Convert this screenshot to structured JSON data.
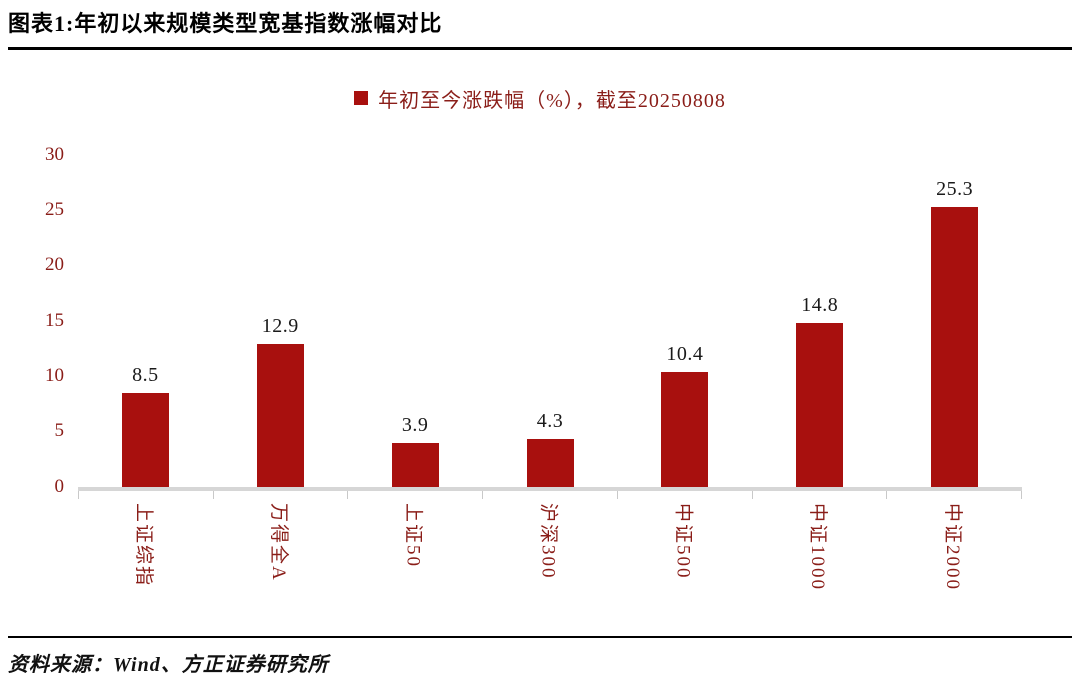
{
  "title": "图表1:年初以来规模类型宽基指数涨幅对比",
  "legend": {
    "label": "年初至今涨跌幅（%），截至20250808"
  },
  "source": "资料来源：Wind、方正证券研究所",
  "colors": {
    "bar": "#a8100e",
    "axis_text": "#8a1d18",
    "value_text": "#1a1a1a",
    "title_text": "#000000",
    "axis_line": "#d6d6d6"
  },
  "chart_data": {
    "type": "bar",
    "title": "图表1:年初以来规模类型宽基指数涨幅对比",
    "series_name": "年初至今涨跌幅（%），截至20250808",
    "categories": [
      "上证综指",
      "万得全A",
      "上证50",
      "沪深300",
      "中证500",
      "中证1000",
      "中证2000"
    ],
    "values": [
      8.5,
      12.9,
      3.9,
      4.3,
      10.4,
      14.8,
      25.3
    ],
    "xlabel": "",
    "ylabel": "",
    "ylim": [
      0,
      30
    ],
    "yticks": [
      0,
      5,
      10,
      15,
      20,
      25,
      30
    ],
    "grid": false,
    "legend_position": "top-center"
  }
}
